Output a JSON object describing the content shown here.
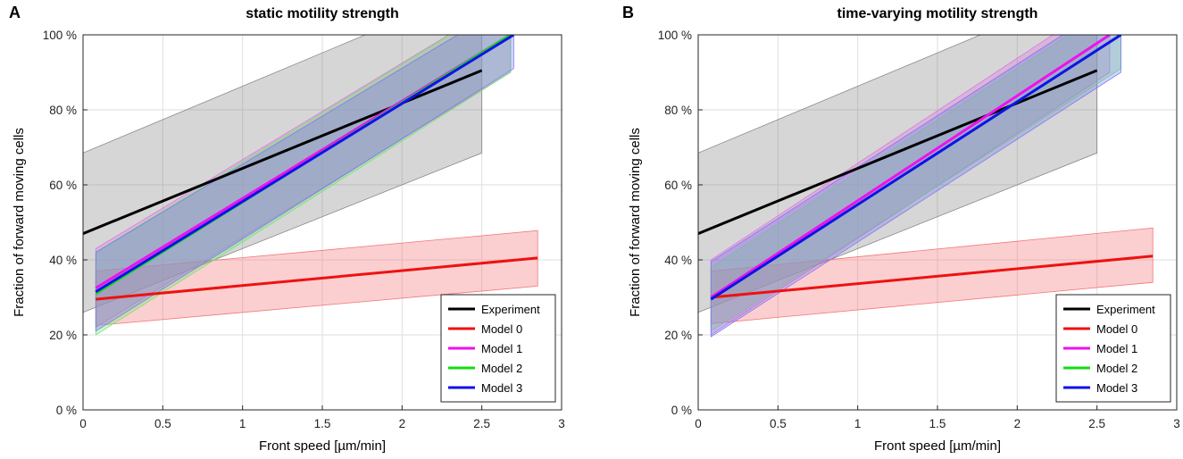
{
  "chart_data": [
    {
      "type": "line",
      "panel": "A",
      "title": "static motility strength",
      "xlabel": "Front speed [µm/min]",
      "ylabel": "Fraction of forward moving cells",
      "xlim": [
        0,
        3
      ],
      "ylim": [
        0,
        100
      ],
      "xticks": [
        0,
        0.5,
        1,
        1.5,
        2,
        2.5,
        3
      ],
      "yticks": [
        0,
        20,
        40,
        60,
        80,
        100
      ],
      "xtick_labels": [
        "0",
        "0.5",
        "1",
        "1.5",
        "2",
        "2.5",
        "3"
      ],
      "ytick_labels": [
        "0 %",
        "20 %",
        "40 %",
        "60 %",
        "80 %",
        "100 %"
      ],
      "grid": true,
      "legend_position": "bottom-right",
      "series": [
        {
          "name": "Experiment",
          "color": "#000000",
          "band_color": "#7f7f7f",
          "x": [
            0,
            2.5
          ],
          "values": [
            47,
            90.5
          ],
          "lower": [
            26,
            68.5
          ],
          "upper": [
            68.5,
            113
          ]
        },
        {
          "name": "Model 0",
          "color": "#ee1111",
          "band_color": "#f26a6a",
          "x": [
            0.08,
            2.85
          ],
          "values": [
            29.5,
            40.5
          ],
          "lower": [
            22.5,
            33
          ],
          "upper": [
            37,
            47.8
          ]
        },
        {
          "name": "Model 1",
          "color": "#ee11ee",
          "band_color": "#e070e0",
          "x": [
            0.08,
            2.68
          ],
          "values": [
            32.5,
            100
          ],
          "lower": [
            22,
            90
          ],
          "upper": [
            43,
            110
          ]
        },
        {
          "name": "Model 2",
          "color": "#11dd11",
          "band_color": "#6ce86c",
          "x": [
            0.08,
            2.68
          ],
          "values": [
            31,
            100
          ],
          "lower": [
            20,
            90
          ],
          "upper": [
            42,
            110
          ]
        },
        {
          "name": "Model 3",
          "color": "#1111ee",
          "band_color": "#7474ee",
          "x": [
            0.08,
            2.7
          ],
          "values": [
            31.5,
            100
          ],
          "lower": [
            21,
            91
          ],
          "upper": [
            42,
            109
          ]
        }
      ]
    },
    {
      "type": "line",
      "panel": "B",
      "title": "time-varying motility strength",
      "xlabel": "Front speed [µm/min]",
      "ylabel": "Fraction of forward moving cells",
      "xlim": [
        0,
        3
      ],
      "ylim": [
        0,
        100
      ],
      "xticks": [
        0,
        0.5,
        1,
        1.5,
        2,
        2.5,
        3
      ],
      "yticks": [
        0,
        20,
        40,
        60,
        80,
        100
      ],
      "xtick_labels": [
        "0",
        "0.5",
        "1",
        "1.5",
        "2",
        "2.5",
        "3"
      ],
      "ytick_labels": [
        "0 %",
        "20 %",
        "40 %",
        "60 %",
        "80 %",
        "100 %"
      ],
      "grid": true,
      "legend_position": "bottom-right",
      "series": [
        {
          "name": "Experiment",
          "color": "#000000",
          "band_color": "#7f7f7f",
          "x": [
            0,
            2.5
          ],
          "values": [
            47,
            90.5
          ],
          "lower": [
            26,
            68.5
          ],
          "upper": [
            68.5,
            113
          ]
        },
        {
          "name": "Model 0",
          "color": "#ee1111",
          "band_color": "#f26a6a",
          "x": [
            0.08,
            2.85
          ],
          "values": [
            30,
            41
          ],
          "lower": [
            23,
            34
          ],
          "upper": [
            37,
            48.5
          ]
        },
        {
          "name": "Model 1",
          "color": "#ee11ee",
          "band_color": "#e070e0",
          "x": [
            0.08,
            2.58
          ],
          "values": [
            30,
            100
          ],
          "lower": [
            20,
            90
          ],
          "upper": [
            40,
            110
          ]
        },
        {
          "name": "Model 2",
          "color": "#11dd11",
          "band_color": "#6ce86c",
          "x": [
            0.08,
            2.65
          ],
          "values": [
            29.5,
            100
          ],
          "lower": [
            21,
            91
          ],
          "upper": [
            38,
            109
          ]
        },
        {
          "name": "Model 3",
          "color": "#1111ee",
          "band_color": "#7474ee",
          "x": [
            0.08,
            2.65
          ],
          "values": [
            29.5,
            100
          ],
          "lower": [
            19.5,
            90
          ],
          "upper": [
            39.5,
            110
          ]
        }
      ]
    }
  ]
}
